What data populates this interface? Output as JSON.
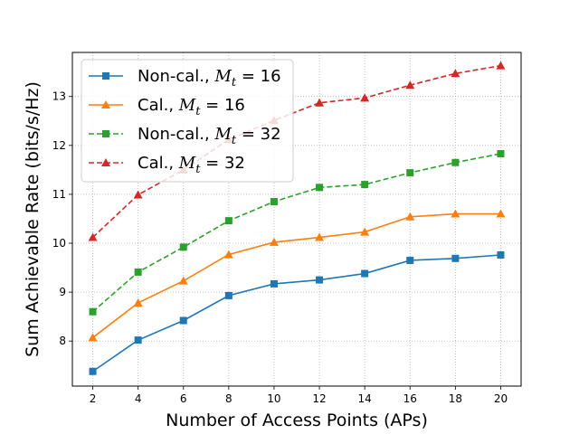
{
  "chart_data": {
    "type": "line",
    "title": "",
    "xlabel": "Number of Access Points (APs)",
    "ylabel": "Sum Achievable Rate (bits/s/Hz)",
    "x": [
      2,
      4,
      6,
      8,
      10,
      12,
      14,
      16,
      18,
      20
    ],
    "xlim": [
      1.1,
      20.9
    ],
    "ylim": [
      7.08,
      13.9
    ],
    "xticks": [
      "2",
      "4",
      "6",
      "8",
      "10",
      "12",
      "14",
      "16",
      "18",
      "20"
    ],
    "yticks": [
      "8",
      "9",
      "10",
      "11",
      "12",
      "13"
    ],
    "grid": true,
    "legend_position": "top-left",
    "series": [
      {
        "name_prefix": "Non-cal., ",
        "name_var": "M",
        "name_sub": "t",
        "name_suffix": " = 16",
        "color": "#1f77b4",
        "dashed": false,
        "marker": "square",
        "values": [
          7.38,
          8.02,
          8.42,
          8.93,
          9.17,
          9.25,
          9.38,
          9.65,
          9.69,
          9.76
        ]
      },
      {
        "name_prefix": "Cal., ",
        "name_var": "M",
        "name_sub": "t",
        "name_suffix": " = 16",
        "color": "#ff7f0e",
        "dashed": false,
        "marker": "triangle",
        "values": [
          8.07,
          8.78,
          9.23,
          9.77,
          10.02,
          10.12,
          10.23,
          10.54,
          10.6,
          10.6
        ]
      },
      {
        "name_prefix": "Non-cal., ",
        "name_var": "M",
        "name_sub": "t",
        "name_suffix": " = 32",
        "color": "#2ca02c",
        "dashed": true,
        "marker": "square",
        "values": [
          8.6,
          9.41,
          9.92,
          10.46,
          10.85,
          11.14,
          11.2,
          11.44,
          11.65,
          11.83
        ]
      },
      {
        "name_prefix": "Cal., ",
        "name_var": "M",
        "name_sub": "t",
        "name_suffix": " = 32",
        "color": "#d62728",
        "dashed": true,
        "marker": "triangle",
        "values": [
          10.12,
          10.99,
          11.5,
          12.12,
          12.51,
          12.87,
          12.97,
          13.23,
          13.47,
          13.63
        ]
      }
    ]
  }
}
